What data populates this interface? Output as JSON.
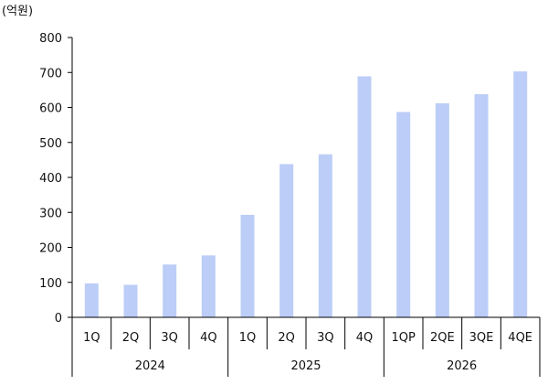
{
  "chart_data": {
    "type": "bar",
    "unit_label": "(억원)",
    "categories": [
      "1Q",
      "2Q",
      "3Q",
      "4Q",
      "1Q",
      "2Q",
      "3Q",
      "4Q",
      "1QP",
      "2QE",
      "3QE",
      "4QE"
    ],
    "groups": [
      {
        "label": "2024",
        "count": 4
      },
      {
        "label": "2025",
        "count": 4
      },
      {
        "label": "2026",
        "count": 4
      }
    ],
    "values": [
      97,
      93,
      151,
      177,
      293,
      438,
      466,
      689,
      587,
      612,
      638,
      703
    ],
    "ylim": [
      0,
      800
    ],
    "yticks": [
      0,
      100,
      200,
      300,
      400,
      500,
      600,
      700,
      800
    ],
    "grid": false,
    "legend": "none",
    "bar_color": "#bccdf7",
    "axis_color": "#000000"
  }
}
